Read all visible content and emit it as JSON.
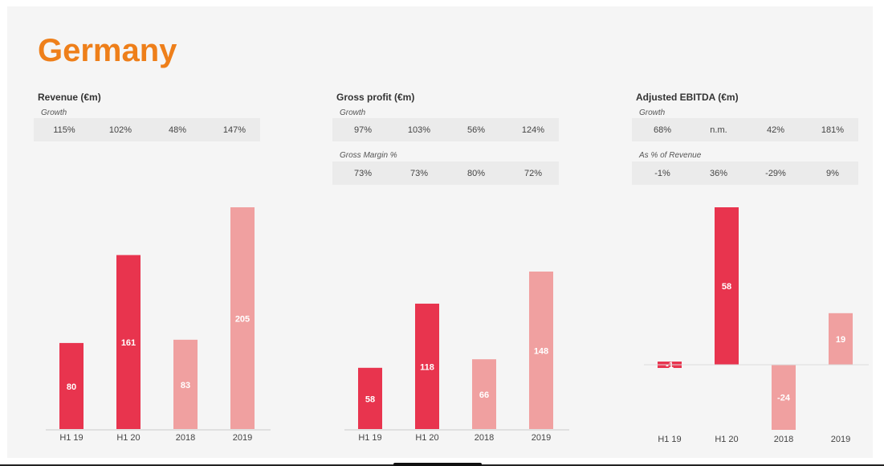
{
  "title": "Germany",
  "colors": {
    "title": "#ee7f1a",
    "half_year": "#e8344e",
    "full_year": "#f0a0a0"
  },
  "chart_data": [
    {
      "type": "bar",
      "title": "Revenue (€m)",
      "categories": [
        "H1 19",
        "H1 20",
        "2018",
        "2019"
      ],
      "values": [
        80,
        161,
        83,
        205
      ],
      "ylim": [
        0,
        205
      ],
      "metrics": [
        {
          "label": "Growth",
          "values": [
            "115%",
            "102%",
            "48%",
            "147%"
          ]
        }
      ]
    },
    {
      "type": "bar",
      "title": "Gross profit (€m)",
      "categories": [
        "H1 19",
        "H1 20",
        "2018",
        "2019"
      ],
      "values": [
        58,
        118,
        66,
        148
      ],
      "ylim": [
        0,
        148
      ],
      "metrics": [
        {
          "label": "Growth",
          "values": [
            "97%",
            "103%",
            "56%",
            "124%"
          ]
        },
        {
          "label": "Gross Margin %",
          "values": [
            "73%",
            "73%",
            "80%",
            "72%"
          ]
        }
      ]
    },
    {
      "type": "bar",
      "title": "Adjusted EBITDA (€m)",
      "categories": [
        "H1 19",
        "H1 20",
        "2018",
        "2019"
      ],
      "values": [
        -1,
        58,
        -24,
        19
      ],
      "ylim": [
        -24,
        58
      ],
      "metrics": [
        {
          "label": "Growth",
          "values": [
            "68%",
            "n.m.",
            "42%",
            "181%"
          ]
        },
        {
          "label": "As % of Revenue",
          "values": [
            "-1%",
            "36%",
            "-29%",
            "9%"
          ]
        }
      ]
    }
  ]
}
